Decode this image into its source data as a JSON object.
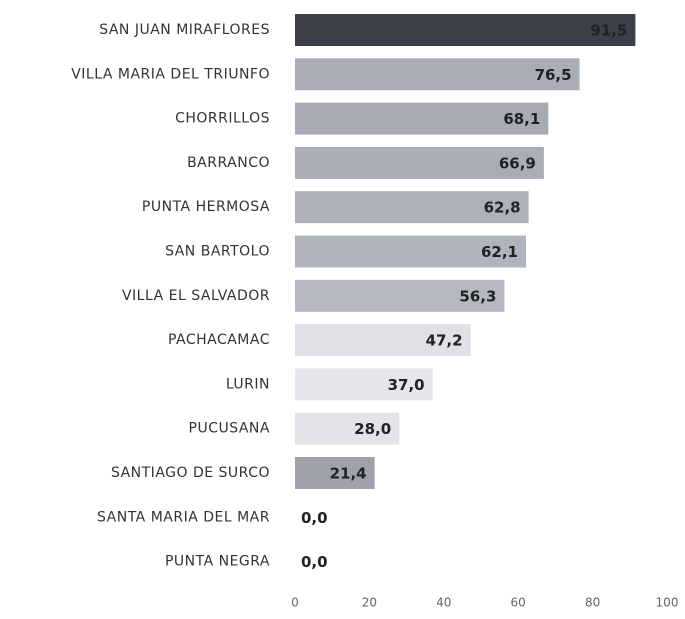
{
  "chart_data": {
    "type": "barh",
    "categories": [
      "SAN JUAN MIRAFLORES",
      "VILLA MARIA DEL TRIUNFO",
      "CHORRILLOS",
      "BARRANCO",
      "PUNTA HERMOSA",
      "SAN BARTOLO",
      "VILLA EL SALVADOR",
      "PACHACAMAC",
      "LURIN",
      "PUCUSANA",
      "SANTIAGO DE SURCO",
      "SANTA MARIA DEL MAR",
      "PUNTA NEGRA"
    ],
    "values": [
      91.5,
      76.5,
      68.1,
      66.9,
      62.8,
      62.1,
      56.3,
      47.2,
      37.0,
      28.0,
      21.4,
      0,
      0
    ],
    "value_labels": [
      "91,5",
      "76,5",
      "68,1",
      "66,9",
      "62,8",
      "62,1",
      "56,3",
      "47,2",
      "37,0",
      "28,0",
      "21,4",
      "0,0",
      "0,0"
    ],
    "colors": [
      "#3b3f48",
      "#a9adb8",
      "#a7abb5",
      "#a9adb8",
      "#adb1bb",
      "#b0b4bd",
      "#b4b8c1",
      "#e0e1e6",
      "#e6e7eb",
      "#e3e4e8",
      "#9ea2ad",
      "#cccccc",
      "#cccccc"
    ],
    "xlim": [
      0,
      100
    ],
    "xticks": [
      0,
      20,
      40,
      60,
      80,
      100
    ]
  }
}
